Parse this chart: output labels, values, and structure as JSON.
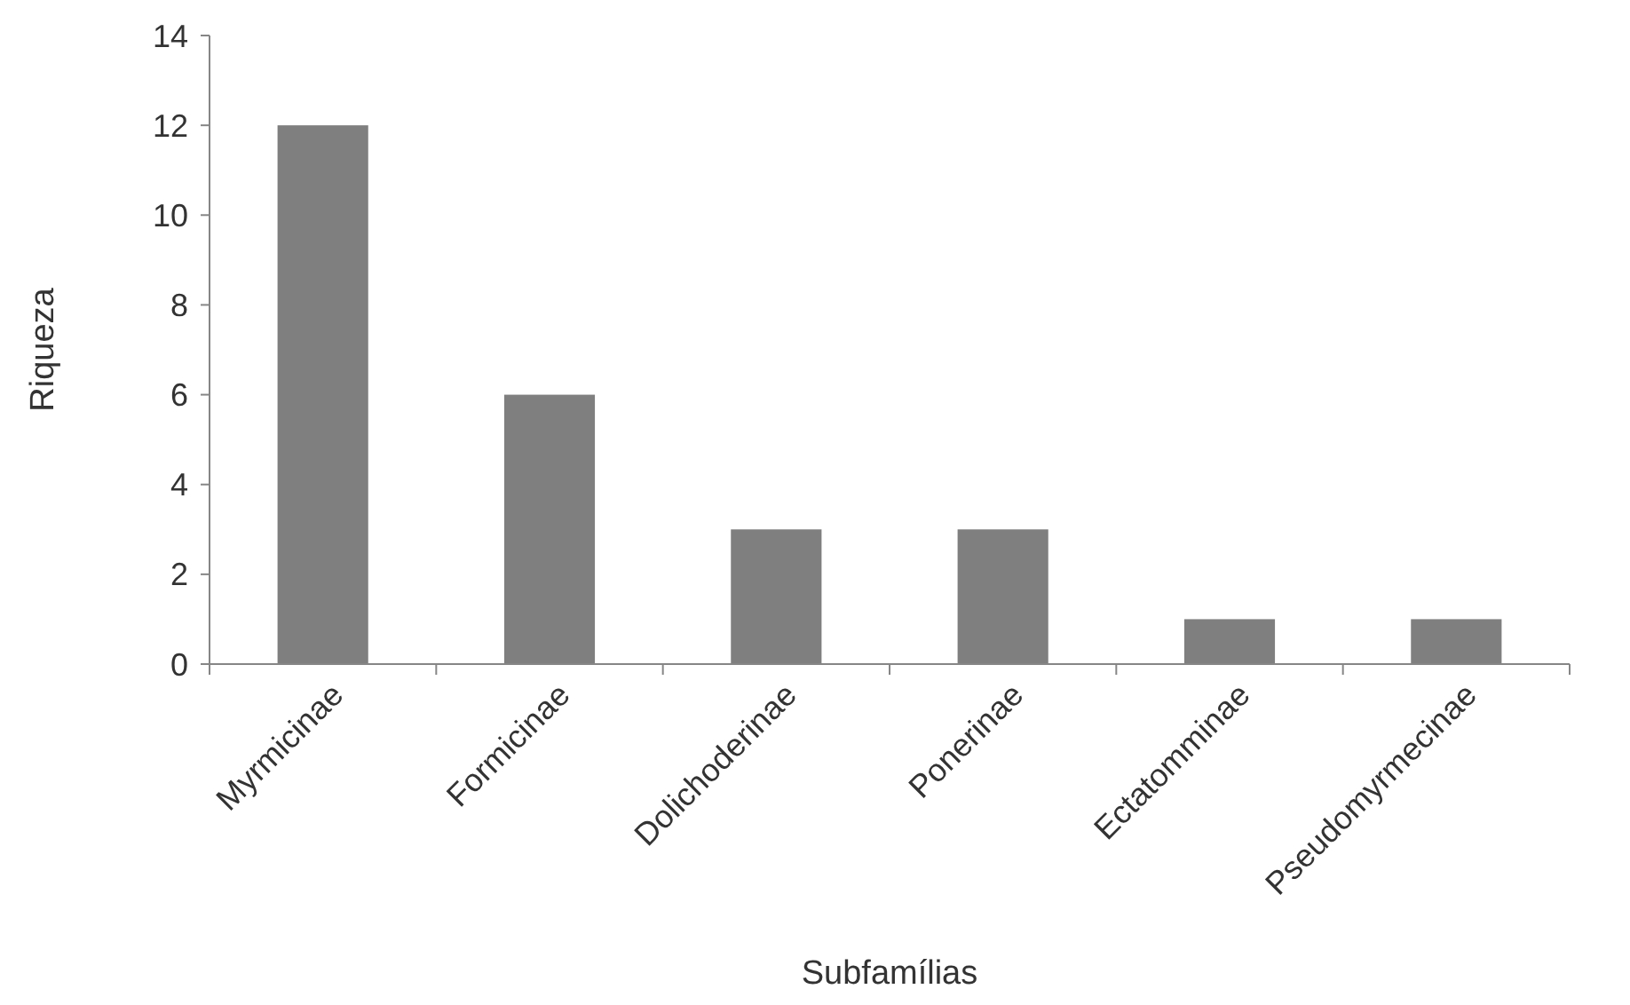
{
  "chart_data": {
    "type": "bar",
    "xlabel": "Subfamílias",
    "ylabel": "Riqueza",
    "categories": [
      "Myrmicinae",
      "Formicinae",
      "Dolichoderinae",
      "Ponerinae",
      "Ectatomminae",
      "Pseudomyrmecinae"
    ],
    "values": [
      12,
      6,
      3,
      3,
      1,
      1
    ],
    "color": "#7f7f7f",
    "ylim": [
      0,
      14
    ],
    "yticks": [
      0,
      2,
      4,
      6,
      8,
      10,
      12,
      14
    ]
  }
}
